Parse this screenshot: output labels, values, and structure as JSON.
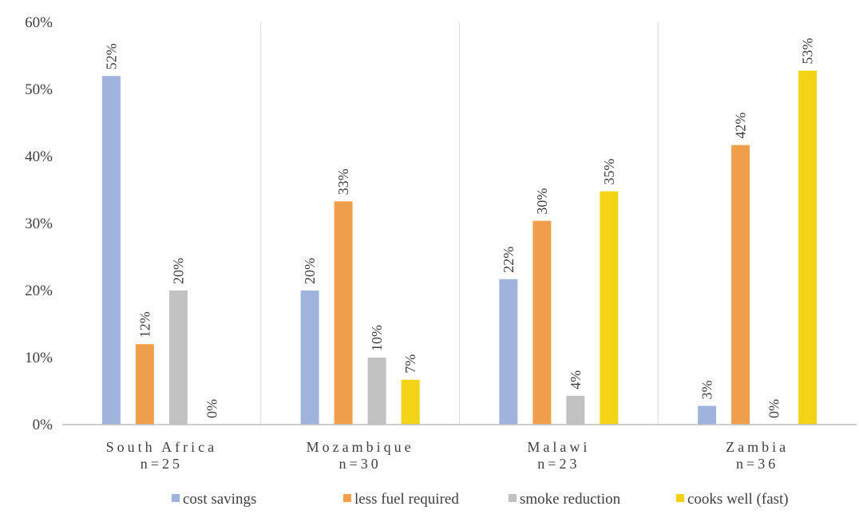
{
  "chart_data": {
    "type": "bar",
    "categories": [
      [
        "South Africa",
        "n=25"
      ],
      [
        "Mozambique",
        "n=30"
      ],
      [
        "Malawi",
        "n=23"
      ],
      [
        "Zambia",
        "n=36"
      ]
    ],
    "series": [
      {
        "name": "cost savings",
        "color": "#9eb4dd",
        "values": [
          52,
          20,
          22,
          3
        ],
        "plotted": [
          52,
          20,
          21.7,
          2.8
        ]
      },
      {
        "name": "less fuel required",
        "color": "#f0a04c",
        "values": [
          12,
          33,
          30,
          42
        ],
        "plotted": [
          12,
          33.3,
          30.4,
          41.7
        ]
      },
      {
        "name": "smoke reduction",
        "color": "#c2c2c2",
        "values": [
          20,
          10,
          4,
          0
        ],
        "plotted": [
          20,
          10,
          4.3,
          0
        ]
      },
      {
        "name": "cooks well (fast)",
        "color": "#f2d414",
        "values": [
          0,
          7,
          35,
          53
        ],
        "plotted": [
          0,
          6.7,
          34.8,
          52.8
        ]
      }
    ],
    "y_ticks": [
      "0%",
      "10%",
      "20%",
      "30%",
      "40%",
      "50%",
      "60%"
    ],
    "ylim": [
      0,
      60
    ],
    "value_suffix": "%",
    "grid": "vertical separators between categories",
    "legend": "bottom"
  }
}
